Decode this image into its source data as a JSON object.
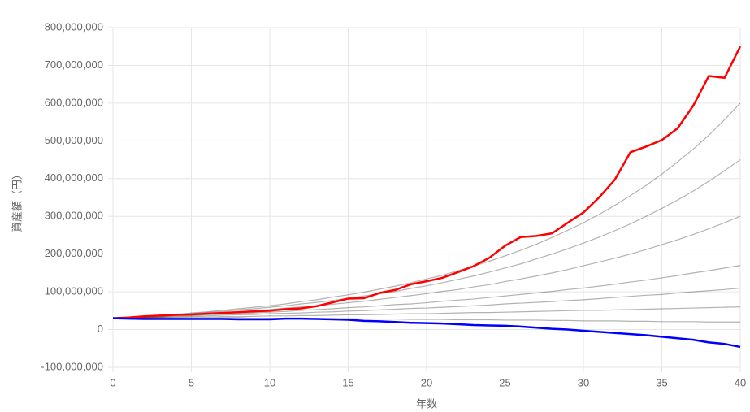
{
  "chart_data": {
    "type": "line",
    "x_label": "年数",
    "y_label": "資産額（円）",
    "x": [
      0,
      1,
      2,
      3,
      4,
      5,
      6,
      7,
      8,
      9,
      10,
      11,
      12,
      13,
      14,
      15,
      16,
      17,
      18,
      19,
      20,
      21,
      22,
      23,
      24,
      25,
      26,
      27,
      28,
      29,
      30,
      31,
      32,
      33,
      34,
      35,
      36,
      37,
      38,
      39,
      40
    ],
    "xlim": [
      0,
      40
    ],
    "xticks": [
      0,
      5,
      10,
      15,
      20,
      25,
      30,
      35,
      40
    ],
    "ylim": [
      -100000000,
      800000000
    ],
    "yticks": [
      {
        "value": -100000000,
        "label": "-100,000,000"
      },
      0,
      {
        "value": 100000000,
        "label": "100,000,000"
      },
      {
        "value": 200000000,
        "label": "200,000,000"
      },
      {
        "value": 300000000,
        "label": "300,000,000"
      },
      {
        "value": 400000000,
        "label": "400,000,000"
      },
      {
        "value": 500000000,
        "label": "500,000,000"
      },
      {
        "value": 600000000,
        "label": "600,000,000"
      },
      {
        "value": 700000000,
        "label": "700,000,000"
      },
      {
        "value": 800000000,
        "label": "800,000,000"
      }
    ],
    "grid": true,
    "series": [
      {
        "color": "rgba(0,0,0,0.3)",
        "values": [
          30000000,
          32000000,
          35000000,
          38000000,
          40000000,
          44000000,
          47000000,
          51000000,
          55000000,
          59000000,
          63000000,
          68000000,
          74000000,
          79000000,
          86000000,
          92000000,
          99000000,
          107000000,
          115000000,
          124000000,
          134000000,
          144000000,
          156000000,
          168000000,
          181000000,
          195000000,
          210000000,
          226000000,
          244000000,
          263000000,
          283000000,
          305000000,
          329000000,
          355000000,
          382000000,
          412000000,
          444000000,
          478000000,
          515000000,
          556000000,
          600000000
        ]
      },
      {
        "color": "rgba(0,0,0,0.3)",
        "values": [
          30000000,
          32000000,
          34000000,
          37000000,
          39000000,
          42000000,
          45000000,
          48000000,
          52000000,
          55000000,
          59000000,
          63000000,
          68000000,
          72000000,
          77000000,
          83000000,
          89000000,
          95000000,
          101000000,
          109000000,
          116000000,
          124000000,
          133000000,
          142000000,
          152000000,
          163000000,
          174000000,
          187000000,
          200000000,
          214000000,
          229000000,
          245000000,
          262000000,
          280000000,
          300000000,
          321000000,
          343000000,
          367000000,
          393000000,
          421000000,
          450000000
        ]
      },
      {
        "color": "rgba(0,0,0,0.3)",
        "values": [
          30000000,
          32000000,
          34000000,
          36000000,
          38000000,
          40000000,
          42000000,
          45000000,
          48000000,
          50000000,
          53000000,
          57000000,
          60000000,
          63000000,
          67000000,
          71000000,
          75000000,
          80000000,
          85000000,
          90000000,
          95000000,
          101000000,
          106000000,
          113000000,
          119000000,
          127000000,
          134000000,
          142000000,
          150000000,
          159000000,
          169000000,
          179000000,
          189000000,
          200000000,
          212000000,
          225000000,
          238000000,
          252000000,
          267000000,
          283000000,
          300000000
        ]
      },
      {
        "color": "rgba(0,0,0,0.3)",
        "values": [
          30000000,
          31000000,
          33000000,
          34000000,
          36000000,
          37000000,
          39000000,
          41000000,
          42000000,
          44000000,
          46000000,
          48000000,
          51000000,
          53000000,
          55000000,
          58000000,
          60000000,
          63000000,
          66000000,
          68000000,
          71000000,
          75000000,
          78000000,
          81000000,
          85000000,
          89000000,
          93000000,
          97000000,
          101000000,
          106000000,
          110000000,
          115000000,
          120000000,
          126000000,
          131000000,
          137000000,
          143000000,
          150000000,
          156000000,
          163000000,
          170000000
        ]
      },
      {
        "color": "rgba(0,0,0,0.3)",
        "values": [
          30000000,
          31000000,
          32000000,
          33000000,
          34000000,
          35000000,
          36000000,
          38000000,
          39000000,
          40000000,
          42000000,
          43000000,
          44000000,
          46000000,
          47000000,
          49000000,
          50000000,
          52000000,
          54000000,
          56000000,
          57000000,
          59000000,
          61000000,
          63000000,
          65000000,
          68000000,
          70000000,
          72000000,
          74000000,
          77000000,
          79000000,
          82000000,
          85000000,
          88000000,
          91000000,
          93000000,
          97000000,
          100000000,
          103000000,
          106000000,
          110000000
        ]
      },
      {
        "color": "rgba(0,0,0,0.3)",
        "values": [
          30000000,
          31000000,
          31000000,
          32000000,
          32000000,
          33000000,
          33000000,
          34000000,
          34000000,
          35000000,
          36000000,
          36000000,
          37000000,
          37000000,
          38000000,
          39000000,
          39000000,
          40000000,
          41000000,
          42000000,
          42000000,
          43000000,
          44000000,
          45000000,
          45000000,
          46000000,
          47000000,
          48000000,
          49000000,
          50000000,
          51000000,
          51000000,
          52000000,
          53000000,
          54000000,
          55000000,
          56000000,
          57000000,
          58000000,
          59000000,
          60000000
        ]
      },
      {
        "color": "rgba(0,0,0,0.3)",
        "values": [
          30000000,
          30000000,
          31000000,
          31000000,
          30000000,
          30000000,
          30000000,
          31000000,
          31000000,
          30000000,
          30000000,
          30000000,
          29000000,
          29000000,
          29000000,
          29000000,
          28000000,
          28000000,
          28000000,
          27000000,
          27000000,
          27000000,
          26000000,
          26000000,
          26000000,
          25000000,
          25000000,
          25000000,
          24000000,
          24000000,
          23000000,
          23000000,
          23000000,
          22000000,
          22000000,
          21000000,
          21000000,
          21000000,
          20000000,
          20000000,
          20000000
        ]
      },
      {
        "color": "#ff0000",
        "values": [
          30000000,
          32000000,
          35000000,
          37000000,
          39000000,
          40000000,
          42000000,
          44000000,
          46000000,
          48000000,
          50000000,
          54000000,
          56000000,
          62000000,
          72000000,
          82000000,
          83000000,
          97000000,
          105000000,
          120000000,
          128000000,
          137000000,
          152000000,
          168000000,
          190000000,
          222000000,
          245000000,
          248000000,
          255000000,
          283000000,
          310000000,
          350000000,
          397000000,
          470000000,
          485000000,
          502000000,
          533000000,
          593000000,
          672000000,
          667000000,
          750000000
        ]
      },
      {
        "color": "#0000ff",
        "values": [
          30000000,
          29000000,
          28000000,
          28000000,
          28000000,
          28000000,
          28000000,
          28000000,
          27000000,
          27000000,
          27000000,
          29000000,
          29000000,
          28000000,
          27000000,
          26000000,
          23000000,
          22000000,
          20000000,
          18000000,
          17000000,
          16000000,
          14000000,
          12000000,
          11000000,
          10000000,
          8000000,
          5000000,
          2000000,
          0,
          -3000000,
          -6000000,
          -9000000,
          -12000000,
          -15000000,
          -19000000,
          -23000000,
          -27000000,
          -34000000,
          -38000000,
          -46000000
        ]
      }
    ]
  }
}
